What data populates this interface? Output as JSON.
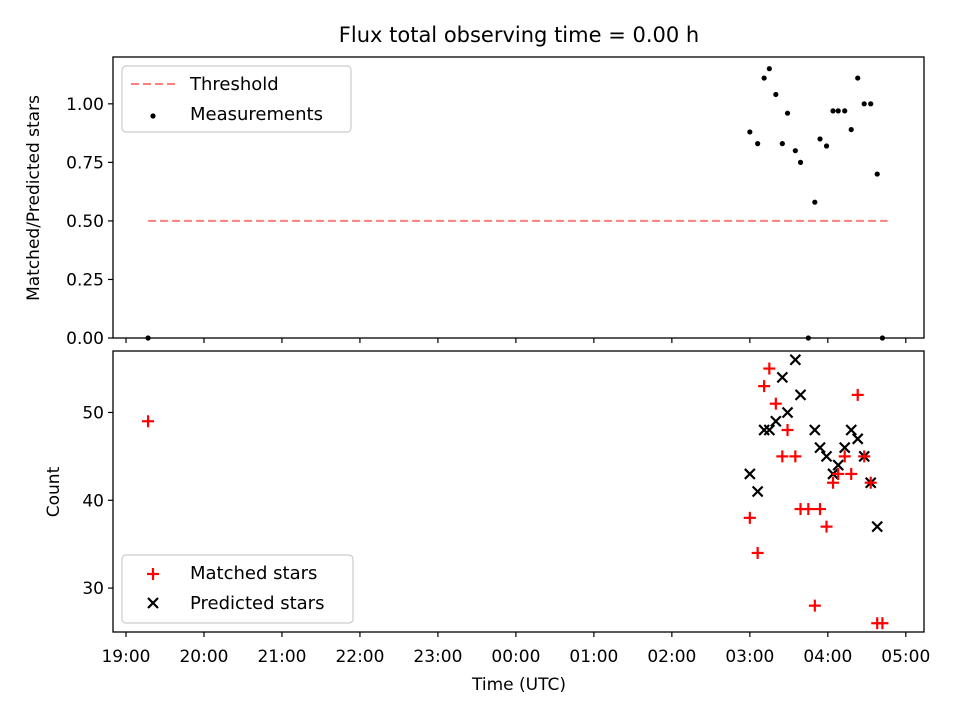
{
  "chart_data": [
    {
      "type": "scatter",
      "title": "Flux total observing time = 0.00 h",
      "xlabel": "",
      "ylabel": "Matched/Predicted stars",
      "xlim": [
        "18:50",
        "05:14"
      ],
      "ylim": [
        0,
        1.2
      ],
      "yticks": [
        "0.00",
        "0.25",
        "0.50",
        "0.75",
        "1.00"
      ],
      "grid": false,
      "legend": "top-left",
      "colors": {
        "threshold": "#ff7f7f",
        "measurements": "#000000"
      },
      "series": [
        {
          "name": "Threshold",
          "kind": "dashed-line",
          "points": [
            [
              "19:17",
              0.5
            ],
            [
              "04:46",
              0.5
            ]
          ]
        },
        {
          "name": "Measurements",
          "kind": "dot",
          "points": [
            [
              "19:17",
              0.0
            ],
            [
              "03:00",
              0.88
            ],
            [
              "03:06",
              0.83
            ],
            [
              "03:11",
              1.11
            ],
            [
              "03:15",
              1.15
            ],
            [
              "03:20",
              1.04
            ],
            [
              "03:25",
              0.83
            ],
            [
              "03:29",
              0.96
            ],
            [
              "03:35",
              0.8
            ],
            [
              "03:39",
              0.75
            ],
            [
              "03:45",
              0.0
            ],
            [
              "03:50",
              0.58
            ],
            [
              "03:54",
              0.85
            ],
            [
              "03:59",
              0.82
            ],
            [
              "04:04",
              0.97
            ],
            [
              "04:08",
              0.97
            ],
            [
              "04:13",
              0.97
            ],
            [
              "04:18",
              0.89
            ],
            [
              "04:23",
              1.11
            ],
            [
              "04:28",
              1.0
            ],
            [
              "04:33",
              1.0
            ],
            [
              "04:38",
              0.7
            ],
            [
              "04:42",
              0.0
            ]
          ]
        }
      ]
    },
    {
      "type": "scatter",
      "title": "",
      "xlabel": "Time (UTC)",
      "ylabel": "Count",
      "xlim": [
        "18:50",
        "05:14"
      ],
      "ylim": [
        25,
        57
      ],
      "xticks": [
        "19:00",
        "20:00",
        "21:00",
        "22:00",
        "23:00",
        "00:00",
        "01:00",
        "02:00",
        "03:00",
        "04:00",
        "05:00"
      ],
      "yticks": [
        "30",
        "40",
        "50"
      ],
      "grid": false,
      "legend": "bottom-left",
      "colors": {
        "matched": "#ff0000",
        "predicted": "#000000"
      },
      "series": [
        {
          "name": "Matched stars",
          "marker": "plus",
          "points": [
            [
              "19:17",
              49
            ],
            [
              "03:00",
              38
            ],
            [
              "03:06",
              34
            ],
            [
              "03:11",
              53
            ],
            [
              "03:15",
              55
            ],
            [
              "03:20",
              51
            ],
            [
              "03:25",
              45
            ],
            [
              "03:29",
              48
            ],
            [
              "03:35",
              45
            ],
            [
              "03:39",
              39
            ],
            [
              "03:45",
              39
            ],
            [
              "03:50",
              28
            ],
            [
              "03:54",
              39
            ],
            [
              "03:59",
              37
            ],
            [
              "04:04",
              42
            ],
            [
              "04:08",
              43
            ],
            [
              "04:13",
              45
            ],
            [
              "04:18",
              43
            ],
            [
              "04:23",
              52
            ],
            [
              "04:28",
              45
            ],
            [
              "04:33",
              42
            ],
            [
              "04:38",
              26
            ],
            [
              "04:42",
              26
            ]
          ]
        },
        {
          "name": "Predicted stars",
          "marker": "x",
          "points": [
            [
              "03:00",
              43
            ],
            [
              "03:06",
              41
            ],
            [
              "03:11",
              48
            ],
            [
              "03:15",
              48
            ],
            [
              "03:20",
              49
            ],
            [
              "03:25",
              54
            ],
            [
              "03:29",
              50
            ],
            [
              "03:35",
              56
            ],
            [
              "03:39",
              52
            ],
            [
              "03:50",
              48
            ],
            [
              "03:54",
              46
            ],
            [
              "03:59",
              45
            ],
            [
              "04:04",
              43
            ],
            [
              "04:08",
              44
            ],
            [
              "04:13",
              46
            ],
            [
              "04:18",
              48
            ],
            [
              "04:23",
              47
            ],
            [
              "04:28",
              45
            ],
            [
              "04:33",
              42
            ],
            [
              "04:38",
              37
            ]
          ]
        }
      ]
    }
  ]
}
